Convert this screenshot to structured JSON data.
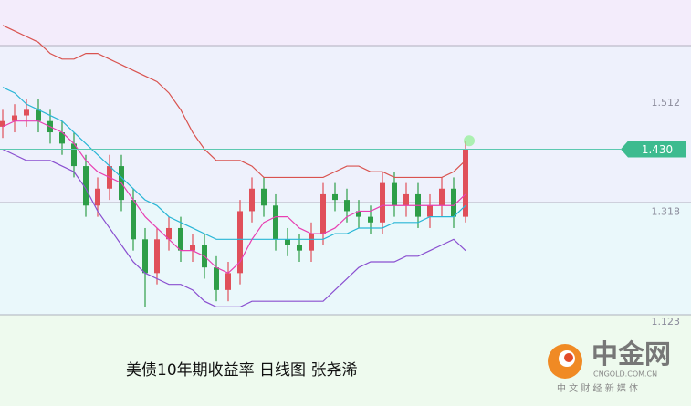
{
  "chart_data": {
    "type": "candlestick",
    "open": [
      1.47,
      1.48,
      1.49,
      1.5,
      1.48,
      1.46,
      1.44,
      1.4,
      1.33,
      1.36,
      1.4,
      1.34,
      1.27,
      1.21,
      1.27,
      1.29,
      1.25,
      1.26,
      1.22,
      1.18,
      1.21,
      1.32,
      1.36,
      1.33,
      1.27,
      1.26,
      1.25,
      1.28,
      1.35,
      1.34,
      1.32,
      1.31,
      1.3,
      1.37,
      1.33,
      1.35,
      1.31,
      1.33,
      1.36,
      1.31
    ],
    "high": [
      1.5,
      1.51,
      1.52,
      1.52,
      1.5,
      1.48,
      1.46,
      1.42,
      1.38,
      1.42,
      1.42,
      1.36,
      1.29,
      1.29,
      1.31,
      1.31,
      1.28,
      1.28,
      1.24,
      1.23,
      1.34,
      1.38,
      1.38,
      1.35,
      1.29,
      1.28,
      1.3,
      1.37,
      1.37,
      1.36,
      1.34,
      1.33,
      1.39,
      1.39,
      1.37,
      1.37,
      1.35,
      1.38,
      1.38,
      1.445
    ],
    "low": [
      1.45,
      1.46,
      1.47,
      1.46,
      1.44,
      1.42,
      1.38,
      1.31,
      1.31,
      1.34,
      1.32,
      1.25,
      1.15,
      1.19,
      1.25,
      1.23,
      1.23,
      1.2,
      1.16,
      1.16,
      1.19,
      1.3,
      1.31,
      1.25,
      1.24,
      1.23,
      1.23,
      1.26,
      1.32,
      1.3,
      1.29,
      1.28,
      1.28,
      1.31,
      1.31,
      1.29,
      1.29,
      1.31,
      1.29,
      1.3
    ],
    "close": [
      1.48,
      1.49,
      1.5,
      1.48,
      1.46,
      1.44,
      1.4,
      1.33,
      1.36,
      1.4,
      1.34,
      1.27,
      1.21,
      1.27,
      1.29,
      1.25,
      1.26,
      1.22,
      1.18,
      1.21,
      1.32,
      1.36,
      1.33,
      1.27,
      1.26,
      1.25,
      1.28,
      1.35,
      1.34,
      1.32,
      1.31,
      1.3,
      1.37,
      1.33,
      1.35,
      1.31,
      1.33,
      1.36,
      1.31,
      1.43
    ],
    "up_color": "#e0505a",
    "down_color": "#2e9e48",
    "lines": [
      {
        "color": "#d9534f",
        "values": [
          1.65,
          1.64,
          1.63,
          1.62,
          1.6,
          1.59,
          1.59,
          1.6,
          1.6,
          1.59,
          1.58,
          1.57,
          1.56,
          1.55,
          1.53,
          1.5,
          1.46,
          1.43,
          1.41,
          1.41,
          1.41,
          1.4,
          1.38,
          1.38,
          1.38,
          1.38,
          1.38,
          1.38,
          1.39,
          1.4,
          1.4,
          1.39,
          1.39,
          1.38,
          1.38,
          1.38,
          1.38,
          1.38,
          1.39,
          1.41
        ]
      },
      {
        "color": "#8a4fd0",
        "values": [
          1.43,
          1.42,
          1.41,
          1.41,
          1.41,
          1.4,
          1.39,
          1.36,
          1.32,
          1.29,
          1.26,
          1.23,
          1.21,
          1.2,
          1.19,
          1.19,
          1.18,
          1.16,
          1.15,
          1.15,
          1.15,
          1.16,
          1.16,
          1.16,
          1.16,
          1.16,
          1.16,
          1.16,
          1.18,
          1.2,
          1.22,
          1.23,
          1.23,
          1.23,
          1.24,
          1.24,
          1.25,
          1.26,
          1.27,
          1.25
        ]
      },
      {
        "color": "#29b6d6",
        "values": [
          1.54,
          1.53,
          1.51,
          1.5,
          1.49,
          1.48,
          1.46,
          1.44,
          1.42,
          1.4,
          1.38,
          1.36,
          1.34,
          1.33,
          1.31,
          1.3,
          1.29,
          1.28,
          1.27,
          1.27,
          1.27,
          1.27,
          1.27,
          1.27,
          1.27,
          1.27,
          1.27,
          1.27,
          1.28,
          1.28,
          1.29,
          1.29,
          1.29,
          1.3,
          1.3,
          1.3,
          1.31,
          1.31,
          1.31,
          1.33
        ]
      },
      {
        "color": "#e83fb2",
        "values": [
          1.47,
          1.48,
          1.48,
          1.48,
          1.47,
          1.46,
          1.44,
          1.41,
          1.39,
          1.38,
          1.37,
          1.34,
          1.31,
          1.29,
          1.27,
          1.25,
          1.25,
          1.24,
          1.22,
          1.21,
          1.23,
          1.27,
          1.3,
          1.31,
          1.31,
          1.29,
          1.28,
          1.28,
          1.29,
          1.31,
          1.32,
          1.32,
          1.33,
          1.33,
          1.33,
          1.33,
          1.33,
          1.33,
          1.33,
          1.35
        ]
      }
    ],
    "ylim": [
      0.974,
      1.695
    ],
    "yticks": [
      1.512,
      1.318,
      1.123
    ],
    "last_price": {
      "value": 1.43,
      "label": "1.430"
    },
    "caption": "美债10年期收益率 日线图 张尧浠",
    "logo": {
      "name": "中金网",
      "domain": "CNGOLD.COM.CN",
      "slogan": "中 文 财 经 新 媒 体"
    }
  }
}
